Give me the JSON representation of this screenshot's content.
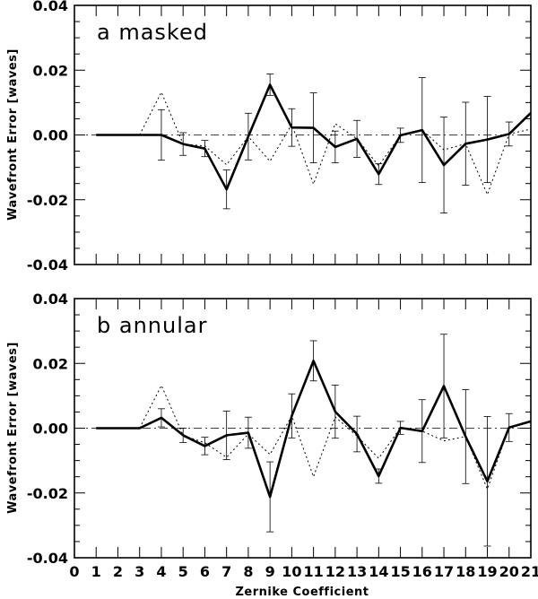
{
  "figure": {
    "xlabel": "Zernike Coefficient",
    "ylabel": "Wavefront Error [waves]"
  },
  "chart_data": [
    {
      "type": "line",
      "title": "a masked",
      "xlabel": "Zernike Coefficient",
      "ylabel": "Wavefront Error [waves]",
      "xlim": [
        0,
        21
      ],
      "ylim": [
        -0.04,
        0.04
      ],
      "xticks": [
        "0",
        "1",
        "2",
        "3",
        "4",
        "5",
        "6",
        "7",
        "8",
        "9",
        "10",
        "11",
        "12",
        "13",
        "14",
        "15",
        "16",
        "17",
        "18",
        "19",
        "20",
        "21"
      ],
      "yticks": [
        "-0.04",
        "-0.02",
        "0.00",
        "0.02",
        "0.04"
      ],
      "yticks_values": [
        -0.04,
        -0.02,
        0.0,
        0.02,
        0.04
      ],
      "grid": false,
      "reference_line": 0.0,
      "series": [
        {
          "style": "solid",
          "x": [
            1,
            2,
            3,
            4,
            5,
            6,
            7,
            8,
            9,
            10,
            11,
            12,
            13,
            14,
            15,
            16,
            17,
            18,
            19,
            20,
            21
          ],
          "y": [
            0,
            0,
            0,
            0,
            -0.0028,
            -0.0042,
            -0.0168,
            -0.0005,
            0.0155,
            0.0023,
            0.0022,
            -0.0037,
            -0.0012,
            -0.0121,
            -0.0001,
            0.0015,
            -0.0093,
            -0.0027,
            -0.0014,
            0.0003,
            0.0068
          ],
          "errors": [
            null,
            null,
            null,
            0.0078,
            0.0035,
            0.0025,
            0.006,
            0.0072,
            0.0033,
            0.0058,
            0.0108,
            0.0049,
            0.0057,
            0.0032,
            0.0022,
            0.0162,
            0.0148,
            0.0128,
            0.0133,
            0.0037,
            null
          ]
        },
        {
          "style": "dotted",
          "x": [
            3,
            4,
            5,
            6,
            7,
            8,
            9,
            10,
            11,
            12,
            13,
            14,
            15,
            16,
            17,
            18,
            19,
            20,
            21
          ],
          "y": [
            0.0,
            0.0132,
            -0.0028,
            -0.0034,
            -0.0092,
            -0.0005,
            -0.0081,
            0.0033,
            -0.0152,
            0.0035,
            -0.0012,
            -0.0095,
            -0.0001,
            0.0015,
            -0.0046,
            -0.0027,
            -0.0184,
            0.0003,
            0.0018
          ]
        }
      ]
    },
    {
      "type": "line",
      "title": "b annular",
      "xlabel": "Zernike Coefficient",
      "ylabel": "Wavefront Error [waves]",
      "xlim": [
        0,
        21
      ],
      "ylim": [
        -0.04,
        0.04
      ],
      "xticks": [
        "0",
        "1",
        "2",
        "3",
        "4",
        "5",
        "6",
        "7",
        "8",
        "9",
        "10",
        "11",
        "12",
        "13",
        "14",
        "15",
        "16",
        "17",
        "18",
        "19",
        "20",
        "21"
      ],
      "yticks": [
        "-0.04",
        "-0.02",
        "0.00",
        "0.02",
        "0.04"
      ],
      "yticks_values": [
        -0.04,
        -0.02,
        0.0,
        0.02,
        0.04
      ],
      "grid": false,
      "reference_line": 0.0,
      "series": [
        {
          "style": "solid",
          "x": [
            1,
            2,
            3,
            4,
            5,
            6,
            7,
            8,
            9,
            10,
            11,
            12,
            13,
            14,
            15,
            16,
            17,
            18,
            19,
            20,
            21
          ],
          "y": [
            0,
            0,
            0,
            0.0032,
            -0.0022,
            -0.0055,
            -0.0022,
            -0.0014,
            -0.0212,
            0.0038,
            0.0208,
            0.0051,
            -0.0018,
            -0.0148,
            0.0001,
            -0.0009,
            0.013,
            -0.0026,
            -0.0164,
            0.0002,
            0.0021
          ],
          "errors": [
            null,
            null,
            null,
            0.0028,
            0.0022,
            0.0027,
            0.0075,
            0.0048,
            0.0108,
            0.0068,
            0.0062,
            0.0082,
            0.0055,
            0.0022,
            0.002,
            0.0097,
            0.016,
            0.0145,
            0.02,
            0.0043,
            null
          ]
        },
        {
          "style": "dotted",
          "x": [
            3,
            4,
            5,
            6,
            7,
            8,
            9,
            10,
            11,
            12,
            13,
            14,
            15,
            16,
            17,
            18,
            19,
            20,
            21
          ],
          "y": [
            0.0,
            0.0132,
            -0.0022,
            -0.0045,
            -0.009,
            -0.0018,
            -0.0081,
            0.0038,
            -0.015,
            0.0035,
            -0.0024,
            -0.0093,
            0.0001,
            -0.0009,
            -0.0039,
            -0.0026,
            -0.0188,
            0.0002,
            0.002
          ]
        }
      ]
    }
  ]
}
